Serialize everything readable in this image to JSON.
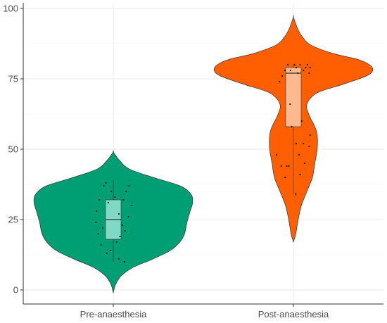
{
  "chart_data": {
    "type": "violin",
    "title": "",
    "xlabel": "",
    "ylabel": "",
    "ylim": [
      -5,
      102
    ],
    "yticks": [
      0,
      25,
      50,
      75,
      100
    ],
    "grid": true,
    "legend": "none",
    "categories": [
      "Pre-anaesthesia",
      "Post-anaesthesia"
    ],
    "groups": [
      {
        "category": "Pre-anaesthesia",
        "fill": "#009E73",
        "box_fill": "#7fd9c6",
        "min": 10,
        "q1": 18,
        "median": 25,
        "q3": 32,
        "max": 39,
        "density": [
          [
            -1,
            0
          ],
          [
            2,
            0.03
          ],
          [
            5,
            0.1
          ],
          [
            8,
            0.25
          ],
          [
            11,
            0.5
          ],
          [
            14,
            0.72
          ],
          [
            17,
            0.84
          ],
          [
            20,
            0.9
          ],
          [
            24,
            0.93
          ],
          [
            28,
            0.97
          ],
          [
            31,
            1.0
          ],
          [
            34,
            0.98
          ],
          [
            37,
            0.84
          ],
          [
            40,
            0.5
          ],
          [
            43,
            0.2
          ],
          [
            46,
            0.08
          ],
          [
            49,
            0
          ]
        ],
        "points": [
          [
            -0.05,
            14
          ],
          [
            -0.12,
            13
          ],
          [
            0.1,
            11
          ],
          [
            0.2,
            10
          ],
          [
            -0.3,
            28
          ],
          [
            -0.25,
            32
          ],
          [
            0.23,
            35
          ],
          [
            -0.09,
            31
          ],
          [
            0.28,
            37
          ],
          [
            -0.17,
            37
          ],
          [
            0.1,
            27
          ],
          [
            0.16,
            23
          ],
          [
            -0.19,
            22
          ],
          [
            0.33,
            30
          ],
          [
            -0.31,
            24
          ],
          [
            0.06,
            17
          ],
          [
            0.21,
            21
          ],
          [
            -0.13,
            38
          ],
          [
            0.03,
            33
          ],
          [
            -0.22,
            16
          ],
          [
            0.12,
            19
          ],
          [
            0.27,
            26
          ],
          [
            -0.04,
            35
          ],
          [
            0.18,
            32
          ],
          [
            -0.27,
            20
          ]
        ]
      },
      {
        "category": "Post-anaesthesia",
        "fill": "#FF5F00",
        "box_fill": "#ffb98e",
        "min": 34,
        "q1": 58,
        "median": 77,
        "q3": 79,
        "max": 80,
        "density": [
          [
            17,
            0
          ],
          [
            20,
            0.03
          ],
          [
            25,
            0.06
          ],
          [
            30,
            0.1
          ],
          [
            35,
            0.17
          ],
          [
            40,
            0.24
          ],
          [
            45,
            0.27
          ],
          [
            50,
            0.3
          ],
          [
            55,
            0.3
          ],
          [
            58,
            0.27
          ],
          [
            62,
            0.2
          ],
          [
            66,
            0.17
          ],
          [
            70,
            0.3
          ],
          [
            73,
            0.62
          ],
          [
            76,
            0.92
          ],
          [
            78,
            1.0
          ],
          [
            80,
            0.96
          ],
          [
            82,
            0.8
          ],
          [
            84,
            0.5
          ],
          [
            87,
            0.22
          ],
          [
            90,
            0.11
          ],
          [
            93,
            0.05
          ],
          [
            97,
            0
          ]
        ],
        "points": [
          [
            -0.05,
            78
          ],
          [
            0.05,
            79
          ],
          [
            0.12,
            80
          ],
          [
            0.18,
            78
          ],
          [
            -0.15,
            78
          ],
          [
            0.25,
            80
          ],
          [
            0.3,
            79
          ],
          [
            -0.1,
            80
          ],
          [
            0.08,
            77
          ],
          [
            0.02,
            80
          ],
          [
            -0.2,
            76
          ],
          [
            0.22,
            79
          ],
          [
            -0.25,
            74
          ],
          [
            0.28,
            77
          ],
          [
            -0.03,
            58
          ],
          [
            0.05,
            52
          ],
          [
            0.1,
            48
          ],
          [
            -0.08,
            44
          ],
          [
            -0.15,
            40
          ],
          [
            0.2,
            45
          ],
          [
            0.28,
            51
          ],
          [
            -0.22,
            44
          ],
          [
            0.18,
            52
          ],
          [
            0.3,
            55
          ],
          [
            -0.3,
            48
          ],
          [
            0.12,
            41
          ],
          [
            -0.12,
            44
          ],
          [
            0.04,
            34
          ],
          [
            -0.06,
            66
          ],
          [
            0.15,
            60
          ]
        ]
      }
    ]
  }
}
